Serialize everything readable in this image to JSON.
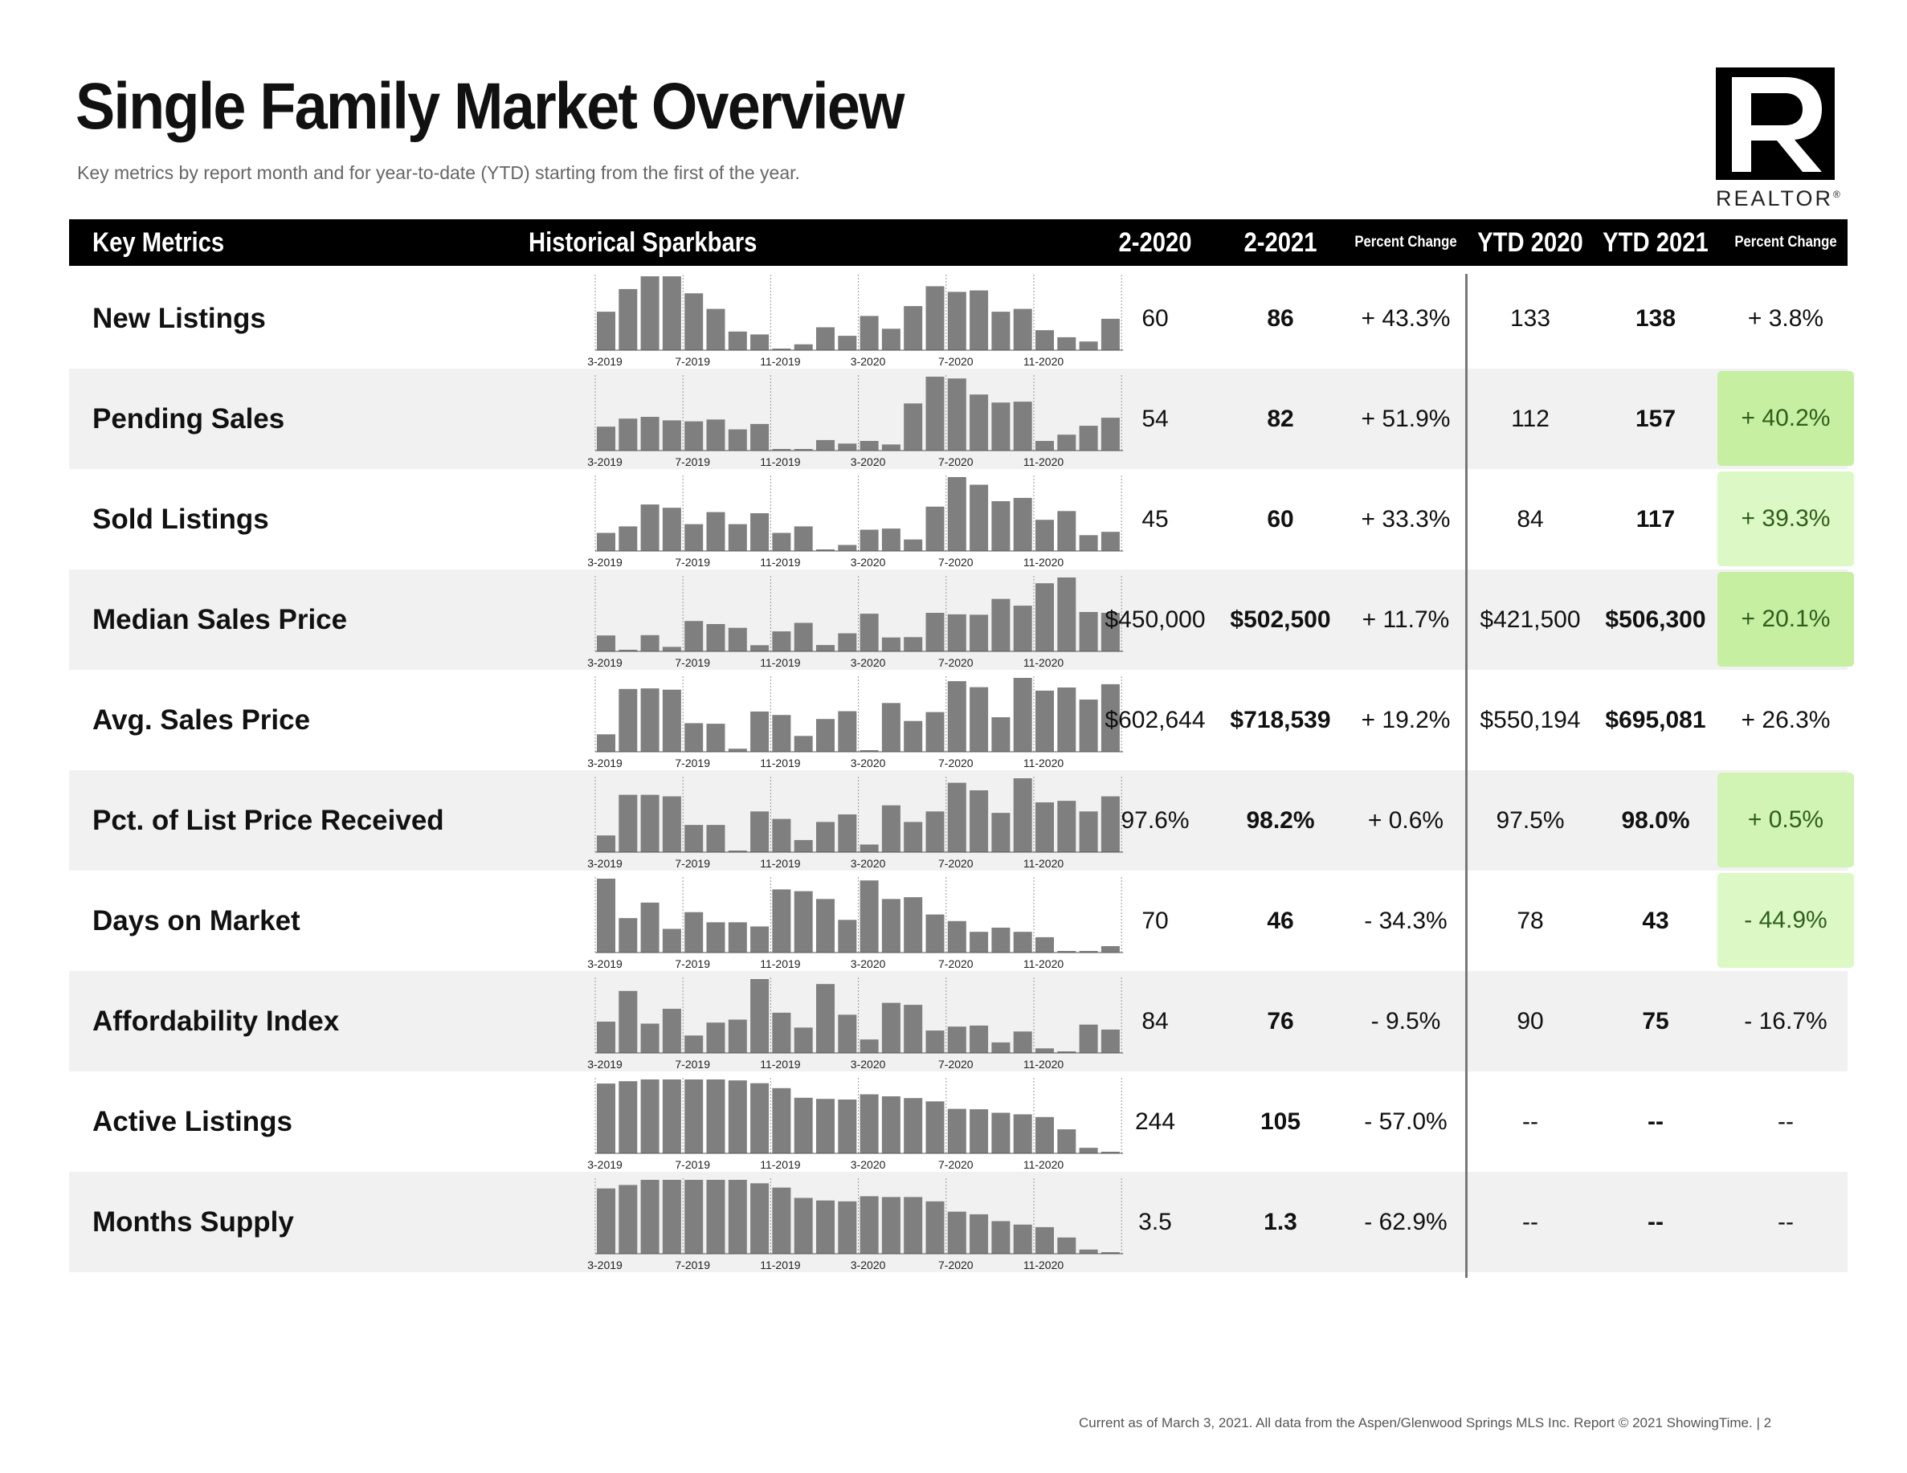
{
  "page": {
    "title": "Single Family Market Overview",
    "subtitle": "Key metrics by report month and for year-to-date (YTD) starting from the first of the year.",
    "logo_caption": "REALTOR",
    "registered_mark": "®",
    "footer": "Current as of March 3, 2021.  All data from the Aspen/Glenwood Springs MLS Inc. Report © 2021 ShowingTime.  |  2"
  },
  "table": {
    "columns": {
      "key_metrics": "Key Metrics",
      "sparkbars": "Historical Sparkbars",
      "col_2020": "2-2020",
      "col_2021": "2-2021",
      "pct_change": "Percent Change",
      "ytd_2020": "YTD 2020",
      "ytd_2021": "YTD 2021",
      "ytd_pct_change": "Percent Change"
    },
    "spark_axis_labels": [
      "3-2019",
      "7-2019",
      "11-2019",
      "3-2020",
      "7-2020",
      "11-2020"
    ],
    "colors": {
      "bar": "#7f7f7f",
      "highlight_light": "#dcf8c4",
      "highlight_mid": "#d1f3b3",
      "highlight_strong": "#c6efa2"
    },
    "rows": [
      {
        "label": "New Listings",
        "v2020": "60",
        "v2021": "86",
        "pct": "+ 43.3%",
        "ytd2020": "133",
        "ytd2021": "138",
        "ytd_pct": "+ 3.8%",
        "highlight": "",
        "spark": [
          27,
          43,
          52,
          52,
          40,
          29,
          13,
          11,
          1,
          4,
          16,
          10,
          24,
          15,
          31,
          45,
          41,
          42,
          27,
          29,
          14,
          9,
          6,
          22
        ]
      },
      {
        "label": "Pending Sales",
        "v2020": "54",
        "v2021": "82",
        "pct": "+ 51.9%",
        "ytd2020": "112",
        "ytd2021": "157",
        "ytd_pct": "+ 40.2%",
        "highlight": "highlight_strong",
        "spark": [
          27,
          36,
          38,
          34,
          33,
          35,
          24,
          30,
          2,
          2,
          12,
          8,
          11,
          7,
          53,
          83,
          81,
          63,
          54,
          55,
          11,
          18,
          28,
          37
        ]
      },
      {
        "label": "Sold Listings",
        "v2020": "45",
        "v2021": "60",
        "pct": "+ 33.3%",
        "ytd2020": "84",
        "ytd2021": "117",
        "ytd_pct": "+ 39.3%",
        "highlight": "highlight_light",
        "spark": [
          17,
          23,
          43,
          40,
          25,
          36,
          25,
          35,
          17,
          23,
          2,
          6,
          20,
          21,
          11,
          41,
          68,
          61,
          46,
          49,
          29,
          37,
          15,
          18
        ]
      },
      {
        "label": "Median Sales Price",
        "v2020": "$450,000",
        "v2021": "$502,500",
        "pct": "+ 11.7%",
        "ytd2020": "$421,500",
        "ytd2021": "$506,300",
        "ytd_pct": "+ 20.1%",
        "highlight": "highlight_strong",
        "spark": [
          459000,
          365000,
          461000,
          384000,
          554000,
          534000,
          509000,
          395000,
          486000,
          542000,
          396000,
          473000,
          602000,
          446000,
          448000,
          608000,
          598000,
          595000,
          699000,
          655000,
          802000,
          840000,
          613000,
          608000
        ]
      },
      {
        "label": "Avg. Sales Price",
        "v2020": "$602,644",
        "v2021": "$718,539",
        "pct": "+ 19.2%",
        "ytd2020": "$550,194",
        "ytd2021": "$695,081",
        "ytd_pct": "+ 26.3%",
        "highlight": "",
        "spark": [
          570000,
          819000,
          822000,
          815000,
          631000,
          628000,
          491000,
          695000,
          676000,
          561000,
          654000,
          697000,
          483000,
          742000,
          643000,
          692000,
          862000,
          829000,
          664000,
          880000,
          810000,
          827000,
          761000,
          845000
        ]
      },
      {
        "label": "Pct. of List Price Received",
        "v2020": "97.6%",
        "v2021": "98.2%",
        "pct": "+ 0.6%",
        "ytd2020": "97.5%",
        "ytd2021": "98.0%",
        "ytd_pct": "+ 0.5%",
        "highlight": "highlight_mid",
        "spark": [
          95.9,
          98.6,
          98.6,
          98.5,
          96.6,
          96.6,
          94.9,
          97.5,
          97.0,
          95.6,
          96.8,
          97.3,
          95.3,
          97.9,
          96.8,
          97.5,
          99.4,
          98.9,
          97.4,
          99.7,
          98.1,
          98.2,
          97.5,
          98.5
        ]
      },
      {
        "label": "Days on Market",
        "v2020": "70",
        "v2021": "46",
        "pct": "- 34.3%",
        "ytd2020": "78",
        "ytd2021": "43",
        "ytd_pct": "- 44.9%",
        "highlight": "highlight_light",
        "spark": [
          130,
          64,
          90,
          46,
          74,
          57,
          57,
          50,
          112,
          109,
          96,
          61,
          127,
          96,
          99,
          70,
          59,
          41,
          48,
          41,
          32,
          9,
          9,
          17
        ]
      },
      {
        "label": "Affordability Index",
        "v2020": "84",
        "v2021": "76",
        "pct": "- 9.5%",
        "ytd2020": "90",
        "ytd2021": "75",
        "ytd_pct": "- 16.7%",
        "highlight": "",
        "spark": [
          63,
          94,
          61,
          76,
          49,
          62,
          65,
          106,
          72,
          57,
          101,
          70,
          45,
          82,
          80,
          54,
          58,
          59,
          42,
          53,
          36,
          33,
          60,
          55
        ]
      },
      {
        "label": "Active Listings",
        "v2020": "244",
        "v2021": "105",
        "pct": "- 57.0%",
        "ytd2020": "--",
        "ytd2021": "--",
        "ytd_pct": "--",
        "highlight": "",
        "spark": [
          480,
          495,
          506,
          506,
          506,
          506,
          500,
          482,
          451,
          390,
          383,
          379,
          412,
          399,
          388,
          367,
          320,
          317,
          295,
          285,
          268,
          190,
          73,
          48
        ]
      },
      {
        "label": "Months Supply",
        "v2020": "3.5",
        "v2021": "1.3",
        "pct": "- 62.9%",
        "ytd2020": "--",
        "ytd2021": "--",
        "ytd_pct": "--",
        "highlight": "",
        "spark": [
          8.0,
          8.4,
          9.0,
          9.0,
          9.0,
          9.0,
          9.0,
          8.6,
          8.1,
          6.9,
          6.6,
          6.5,
          7.1,
          7.0,
          7.0,
          6.5,
          5.3,
          5.0,
          4.2,
          3.8,
          3.5,
          2.3,
          0.9,
          0.6
        ]
      }
    ]
  }
}
